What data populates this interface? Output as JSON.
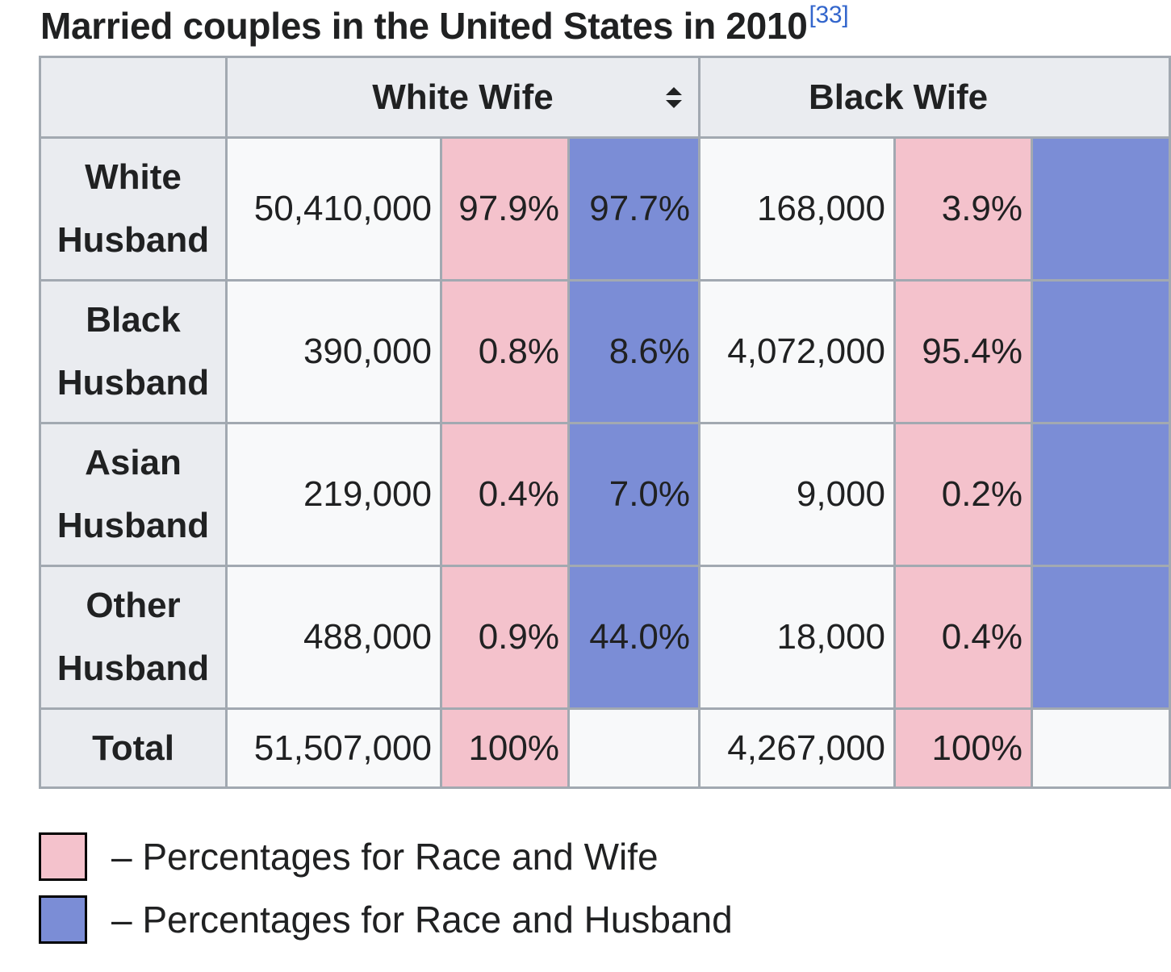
{
  "caption": {
    "title": "Married couples in the United States in 2010",
    "ref": "[33]"
  },
  "table": {
    "column_headers": [
      "White Wife",
      "Black Wife"
    ],
    "rows": [
      {
        "label_line1": "White",
        "label_line2": "Husband",
        "white_wife": {
          "count": "50,410,000",
          "pct_wife": "97.9%",
          "pct_husband": "97.7%"
        },
        "black_wife": {
          "count": "168,000",
          "pct_wife": "3.9%"
        }
      },
      {
        "label_line1": "Black",
        "label_line2": "Husband",
        "white_wife": {
          "count": "390,000",
          "pct_wife": "0.8%",
          "pct_husband": "8.6%"
        },
        "black_wife": {
          "count": "4,072,000",
          "pct_wife": "95.4%"
        }
      },
      {
        "label_line1": "Asian",
        "label_line2": "Husband",
        "white_wife": {
          "count": "219,000",
          "pct_wife": "0.4%",
          "pct_husband": "7.0%"
        },
        "black_wife": {
          "count": "9,000",
          "pct_wife": "0.2%"
        }
      },
      {
        "label_line1": "Other",
        "label_line2": "Husband",
        "white_wife": {
          "count": "488,000",
          "pct_wife": "0.9%",
          "pct_husband": "44.0%"
        },
        "black_wife": {
          "count": "18,000",
          "pct_wife": "0.4%"
        }
      }
    ],
    "total": {
      "label": "Total",
      "white_wife": {
        "count": "51,507,000",
        "pct_wife": "100%",
        "pct_husband": ""
      },
      "black_wife": {
        "count": "4,267,000",
        "pct_wife": "100%"
      }
    }
  },
  "legend": {
    "items": [
      {
        "label": "– Percentages for Race and Wife",
        "color": "#f4c2cc"
      },
      {
        "label": "– Percentages for Race and Husband",
        "color": "#7b8dd6"
      }
    ]
  },
  "colors": {
    "header_bg": "#eaecf0",
    "cell_bg": "#f8f9fa",
    "border": "#a2a9b1",
    "pink": "#f4c2cc",
    "blue": "#7b8dd6",
    "ref_link": "#3366cc"
  },
  "icons": {
    "sort": "sort-icon"
  }
}
